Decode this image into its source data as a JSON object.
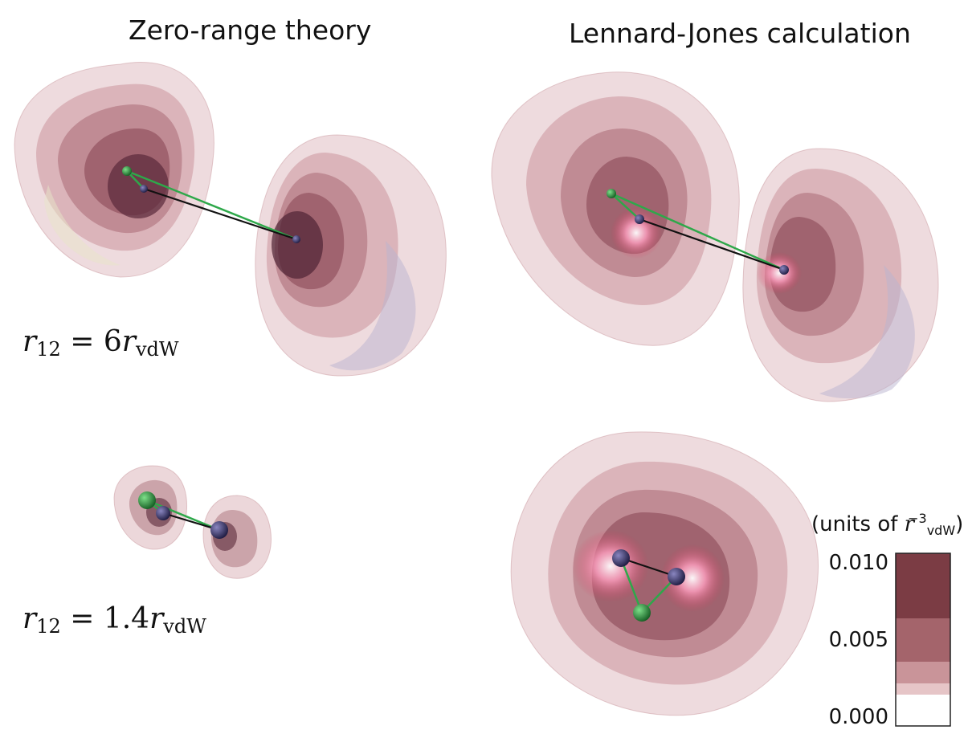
{
  "titles": {
    "left": "Zero-range theory",
    "right": "Lennard-Jones calculation"
  },
  "labels": {
    "top": {
      "var": "r",
      "sub": "12",
      "eq": " = 6",
      "var2": "r",
      "sub2": "vdW"
    },
    "bottom": {
      "var": "r",
      "sub": "12",
      "eq": " = 1.4",
      "var2": "r",
      "sub2": "vdW"
    }
  },
  "colorbar": {
    "caption_prefix": "(units of ",
    "caption_var": "r",
    "caption_sub": "vdW",
    "caption_sup": "−3",
    "caption_suffix": ")",
    "ticks": [
      "0.010",
      "0.005",
      "0.000"
    ],
    "colors": [
      "#7b3c44",
      "#a4646b",
      "#c99499",
      "#e6c5c7",
      "#ffffff"
    ]
  },
  "colors": {
    "bond_green": "#2ea84a",
    "bond_black": "#111111",
    "atom_green": "#1f8a35",
    "atom_dark": "#2e2a55"
  }
}
